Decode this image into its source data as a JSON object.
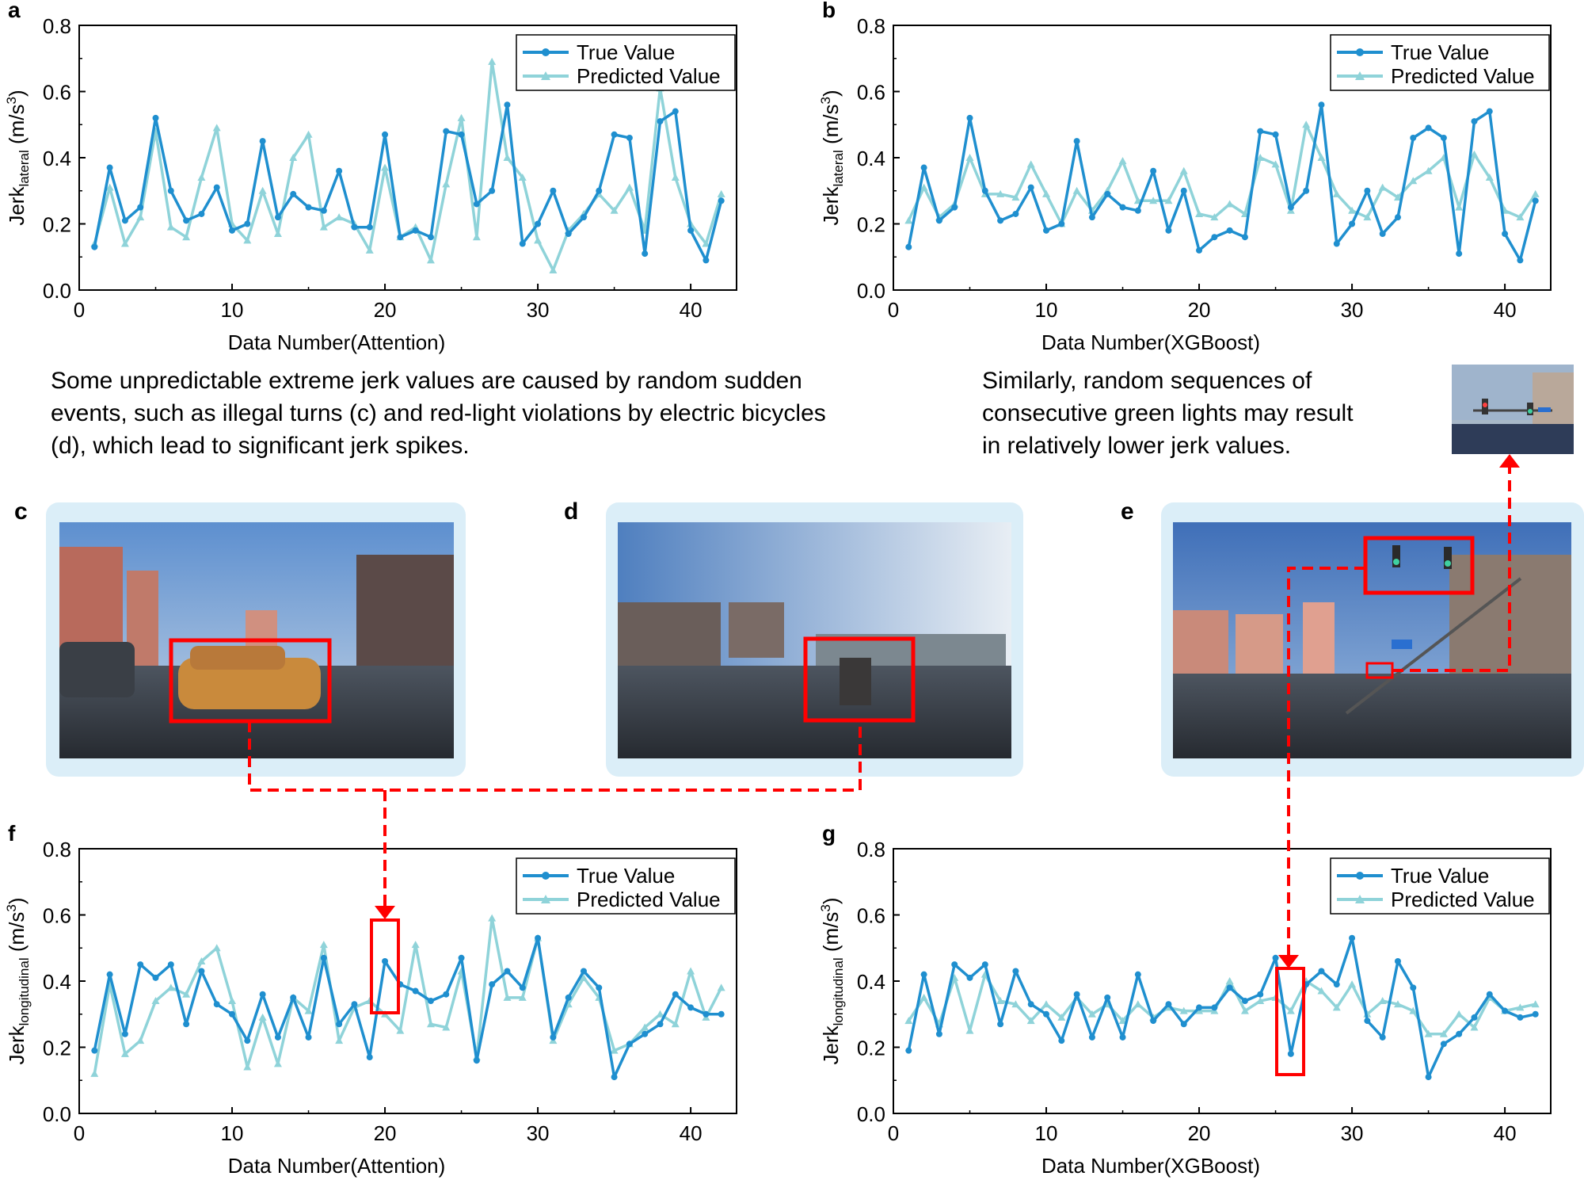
{
  "colors": {
    "true": "#1f8fcf",
    "pred": "#8fd3d9",
    "highlight": "#ff0000",
    "frame": "#dbeef8"
  },
  "annotations": {
    "left_text": [
      "Some unpredictable extreme jerk values are caused by random sudden",
      "events, such as illegal turns (c) and red-light violations by electric bicycles",
      "(d), which lead to significant jerk spikes."
    ],
    "right_text": [
      "Similarly, random sequences of",
      "consecutive green lights may result",
      "in relatively lower jerk values."
    ]
  },
  "photos": [
    {
      "label": "c",
      "scene": "taxi-turn",
      "desc": "street scene with taxi turning"
    },
    {
      "label": "d",
      "scene": "ebike",
      "desc": "crosswalk with electric bicycle"
    },
    {
      "label": "e",
      "scene": "traffic-light",
      "desc": "road with green traffic lights"
    }
  ],
  "chart_data": [
    {
      "panel": "a",
      "type": "line",
      "xlabel": "Data Number(Attention)",
      "ylabel_main": "Jerk",
      "ylabel_sub": "lateral",
      "ylabel_unit": "(m/s",
      "ylabel_sup": "3",
      "ylabel_close": ")",
      "xlim": [
        0,
        43
      ],
      "ylim": [
        0,
        0.8
      ],
      "xticks": [
        "0",
        "10",
        "20",
        "30",
        "40"
      ],
      "yticks": [
        "0.0",
        "0.2",
        "0.4",
        "0.6",
        "0.8"
      ],
      "legend_position": "top-right",
      "x": [
        1,
        2,
        3,
        4,
        5,
        6,
        7,
        8,
        9,
        10,
        11,
        12,
        13,
        14,
        15,
        16,
        17,
        18,
        19,
        20,
        21,
        22,
        23,
        24,
        25,
        26,
        27,
        28,
        29,
        30,
        31,
        32,
        33,
        34,
        35,
        36,
        37,
        38,
        39,
        40,
        41,
        42
      ],
      "series": [
        {
          "name": "True Value",
          "values": [
            0.13,
            0.37,
            0.21,
            0.25,
            0.52,
            0.3,
            0.21,
            0.23,
            0.31,
            0.18,
            0.2,
            0.45,
            0.22,
            0.29,
            0.25,
            0.24,
            0.36,
            0.19,
            0.19,
            0.47,
            0.16,
            0.18,
            0.16,
            0.48,
            0.47,
            0.26,
            0.3,
            0.56,
            0.14,
            0.2,
            0.3,
            0.17,
            0.22,
            0.3,
            0.47,
            0.46,
            0.11,
            0.51,
            0.54,
            0.18,
            0.09,
            0.27
          ]
        },
        {
          "name": "Predicted Value",
          "values": [
            0.14,
            0.31,
            0.14,
            0.22,
            0.48,
            0.19,
            0.16,
            0.34,
            0.49,
            0.2,
            0.15,
            0.3,
            0.17,
            0.4,
            0.47,
            0.19,
            0.22,
            0.2,
            0.12,
            0.37,
            0.16,
            0.19,
            0.09,
            0.32,
            0.52,
            0.16,
            0.69,
            0.4,
            0.34,
            0.15,
            0.06,
            0.18,
            0.23,
            0.29,
            0.24,
            0.31,
            0.18,
            0.61,
            0.34,
            0.2,
            0.14,
            0.29
          ]
        }
      ]
    },
    {
      "panel": "b",
      "type": "line",
      "xlabel": "Data Number(XGBoost)",
      "ylabel_main": "Jerk",
      "ylabel_sub": "lateral",
      "ylabel_unit": "(m/s",
      "ylabel_sup": "3",
      "ylabel_close": ")",
      "xlim": [
        0,
        43
      ],
      "ylim": [
        0,
        0.8
      ],
      "xticks": [
        "0",
        "10",
        "20",
        "30",
        "40"
      ],
      "yticks": [
        "0.0",
        "0.2",
        "0.4",
        "0.6",
        "0.8"
      ],
      "legend_position": "top-right",
      "x": [
        1,
        2,
        3,
        4,
        5,
        6,
        7,
        8,
        9,
        10,
        11,
        12,
        13,
        14,
        15,
        16,
        17,
        18,
        19,
        20,
        21,
        22,
        23,
        24,
        25,
        26,
        27,
        28,
        29,
        30,
        31,
        32,
        33,
        34,
        35,
        36,
        37,
        38,
        39,
        40,
        41,
        42
      ],
      "series": [
        {
          "name": "True Value",
          "values": [
            0.13,
            0.37,
            0.21,
            0.25,
            0.52,
            0.3,
            0.21,
            0.23,
            0.31,
            0.18,
            0.2,
            0.45,
            0.22,
            0.29,
            0.25,
            0.24,
            0.36,
            0.18,
            0.3,
            0.12,
            0.16,
            0.18,
            0.16,
            0.48,
            0.47,
            0.25,
            0.3,
            0.56,
            0.14,
            0.2,
            0.3,
            0.17,
            0.22,
            0.46,
            0.49,
            0.46,
            0.11,
            0.51,
            0.54,
            0.17,
            0.09,
            0.27
          ]
        },
        {
          "name": "Predicted Value",
          "values": [
            0.21,
            0.31,
            0.22,
            0.26,
            0.4,
            0.29,
            0.29,
            0.28,
            0.38,
            0.29,
            0.2,
            0.3,
            0.24,
            0.3,
            0.39,
            0.27,
            0.27,
            0.27,
            0.36,
            0.23,
            0.22,
            0.26,
            0.23,
            0.4,
            0.38,
            0.24,
            0.5,
            0.4,
            0.29,
            0.24,
            0.22,
            0.31,
            0.28,
            0.33,
            0.36,
            0.4,
            0.25,
            0.41,
            0.34,
            0.24,
            0.22,
            0.29
          ]
        }
      ]
    },
    {
      "panel": "f",
      "type": "line",
      "xlabel": "Data Number(Attention)",
      "ylabel_main": "Jerk",
      "ylabel_sub": "longitudinal",
      "ylabel_unit": "(m/s",
      "ylabel_sup": "3",
      "ylabel_close": ")",
      "xlim": [
        0,
        43
      ],
      "ylim": [
        0,
        0.8
      ],
      "xticks": [
        "0",
        "10",
        "20",
        "30",
        "40"
      ],
      "yticks": [
        "0.0",
        "0.2",
        "0.4",
        "0.6",
        "0.8"
      ],
      "legend_position": "top-right",
      "x": [
        1,
        2,
        3,
        4,
        5,
        6,
        7,
        8,
        9,
        10,
        11,
        12,
        13,
        14,
        15,
        16,
        17,
        18,
        19,
        20,
        21,
        22,
        23,
        24,
        25,
        26,
        27,
        28,
        29,
        30,
        31,
        32,
        33,
        34,
        35,
        36,
        37,
        38,
        39,
        40,
        41,
        42
      ],
      "series": [
        {
          "name": "True Value",
          "values": [
            0.19,
            0.42,
            0.24,
            0.45,
            0.41,
            0.45,
            0.27,
            0.43,
            0.33,
            0.3,
            0.22,
            0.36,
            0.23,
            0.35,
            0.23,
            0.47,
            0.27,
            0.33,
            0.17,
            0.46,
            0.39,
            0.37,
            0.34,
            0.36,
            0.47,
            0.16,
            0.39,
            0.43,
            0.38,
            0.53,
            0.23,
            0.35,
            0.43,
            0.38,
            0.11,
            0.21,
            0.24,
            0.27,
            0.36,
            0.32,
            0.3,
            0.3
          ]
        },
        {
          "name": "Predicted Value",
          "values": [
            0.12,
            0.39,
            0.18,
            0.22,
            0.34,
            0.38,
            0.36,
            0.46,
            0.5,
            0.34,
            0.14,
            0.29,
            0.15,
            0.35,
            0.31,
            0.51,
            0.22,
            0.32,
            0.34,
            0.3,
            0.25,
            0.51,
            0.27,
            0.26,
            0.43,
            0.17,
            0.59,
            0.35,
            0.35,
            0.53,
            0.22,
            0.33,
            0.41,
            0.35,
            0.19,
            0.21,
            0.26,
            0.3,
            0.27,
            0.43,
            0.29,
            0.38
          ]
        }
      ]
    },
    {
      "panel": "g",
      "type": "line",
      "xlabel": "Data Number(XGBoost)",
      "ylabel_main": "Jerk",
      "ylabel_sub": "longitudinal",
      "ylabel_unit": "(m/s",
      "ylabel_sup": "3",
      "ylabel_close": ")",
      "xlim": [
        0,
        43
      ],
      "ylim": [
        0,
        0.8
      ],
      "xticks": [
        "0",
        "10",
        "20",
        "30",
        "40"
      ],
      "yticks": [
        "0.0",
        "0.2",
        "0.4",
        "0.6",
        "0.8"
      ],
      "legend_position": "top-right",
      "x": [
        1,
        2,
        3,
        4,
        5,
        6,
        7,
        8,
        9,
        10,
        11,
        12,
        13,
        14,
        15,
        16,
        17,
        18,
        19,
        20,
        21,
        22,
        23,
        24,
        25,
        26,
        27,
        28,
        29,
        30,
        31,
        32,
        33,
        34,
        35,
        36,
        37,
        38,
        39,
        40,
        41,
        42
      ],
      "series": [
        {
          "name": "True Value",
          "values": [
            0.19,
            0.42,
            0.24,
            0.45,
            0.41,
            0.45,
            0.27,
            0.43,
            0.33,
            0.3,
            0.22,
            0.36,
            0.23,
            0.35,
            0.23,
            0.42,
            0.28,
            0.33,
            0.27,
            0.32,
            0.32,
            0.38,
            0.34,
            0.36,
            0.47,
            0.18,
            0.39,
            0.43,
            0.39,
            0.53,
            0.28,
            0.23,
            0.46,
            0.38,
            0.11,
            0.21,
            0.24,
            0.29,
            0.36,
            0.31,
            0.29,
            0.3
          ]
        },
        {
          "name": "Predicted Value",
          "values": [
            0.28,
            0.35,
            0.27,
            0.41,
            0.25,
            0.42,
            0.34,
            0.33,
            0.28,
            0.33,
            0.29,
            0.35,
            0.3,
            0.33,
            0.28,
            0.33,
            0.29,
            0.32,
            0.31,
            0.31,
            0.31,
            0.4,
            0.31,
            0.34,
            0.35,
            0.31,
            0.4,
            0.37,
            0.32,
            0.39,
            0.3,
            0.34,
            0.33,
            0.31,
            0.24,
            0.24,
            0.3,
            0.26,
            0.35,
            0.31,
            0.32,
            0.33
          ]
        }
      ]
    }
  ]
}
